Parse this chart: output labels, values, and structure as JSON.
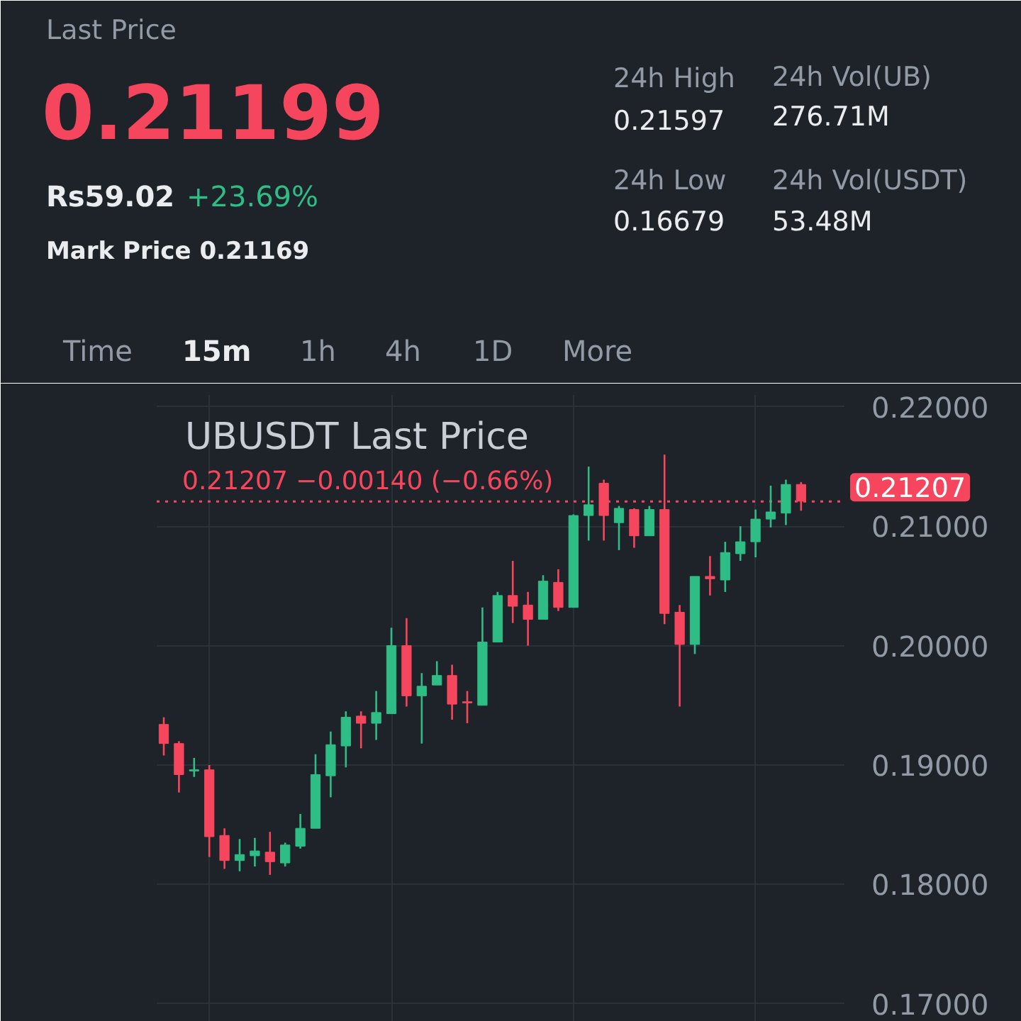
{
  "chart_data": {
    "type": "candlestick",
    "title": "UBUSDT Last Price",
    "annotations": [
      "Last Price",
      "0.21199",
      "Rs59.02",
      "+23.69%",
      "Mark Price 0.21169",
      "24h High",
      "0.21597",
      "24h Low",
      "0.16679",
      "24h Vol(UB)",
      "276.71M",
      "24h Vol(USDT)",
      "53.48M",
      "Time",
      "15m",
      "1h",
      "4h",
      "1D",
      "More",
      "0.21207 −0.00140 (−0.66%)"
    ],
    "categories": [
      null,
      null,
      null,
      null,
      null,
      null,
      null,
      null,
      null,
      null,
      null,
      null,
      null,
      null,
      null,
      null,
      null,
      null,
      null,
      null,
      null,
      null,
      null,
      null,
      null,
      null,
      null,
      null,
      null,
      null,
      null,
      null,
      null,
      null,
      null,
      null,
      null,
      null,
      null,
      null,
      null,
      null,
      null
    ],
    "ohlc": [
      [
        0.1934,
        0.194,
        0.1908,
        0.1918
      ],
      [
        0.1918,
        0.192,
        0.1877,
        0.1892
      ],
      [
        0.1895,
        0.1906,
        0.189,
        0.1896
      ],
      [
        0.1896,
        0.19,
        0.1823,
        0.184
      ],
      [
        0.1841,
        0.1847,
        0.1813,
        0.182
      ],
      [
        0.182,
        0.1838,
        0.1811,
        0.1825
      ],
      [
        0.1824,
        0.1839,
        0.1815,
        0.1828
      ],
      [
        0.1827,
        0.1844,
        0.1808,
        0.1819
      ],
      [
        0.1818,
        0.1835,
        0.1815,
        0.1833
      ],
      [
        0.1832,
        0.1859,
        0.183,
        0.1847
      ],
      [
        0.1847,
        0.1909,
        0.1847,
        0.1892
      ],
      [
        0.1891,
        0.1928,
        0.1873,
        0.1917
      ],
      [
        0.1916,
        0.1945,
        0.1898,
        0.194
      ],
      [
        0.1941,
        0.1945,
        0.1914,
        0.1935
      ],
      [
        0.1935,
        0.1962,
        0.1921,
        0.1944
      ],
      [
        0.1943,
        0.2015,
        0.1943,
        0.2
      ],
      [
        0.2,
        0.2023,
        0.1949,
        0.1958
      ],
      [
        0.1958,
        0.1977,
        0.1918,
        0.1966
      ],
      [
        0.1967,
        0.1987,
        0.1967,
        0.1975
      ],
      [
        0.1975,
        0.1984,
        0.1938,
        0.1951
      ],
      [
        0.1953,
        0.1962,
        0.1935,
        0.1952
      ],
      [
        0.195,
        0.2032,
        0.195,
        0.2003
      ],
      [
        0.2003,
        0.2045,
        0.2003,
        0.2042
      ],
      [
        0.2042,
        0.2071,
        0.2019,
        0.2033
      ],
      [
        0.2034,
        0.2045,
        0.2,
        0.2022
      ],
      [
        0.2022,
        0.2059,
        0.2022,
        0.2054
      ],
      [
        0.2053,
        0.2064,
        0.2029,
        0.2032
      ],
      [
        0.2032,
        0.211,
        0.2032,
        0.2109
      ],
      [
        0.2109,
        0.215,
        0.2088,
        0.2118
      ],
      [
        0.2136,
        0.2139,
        0.2088,
        0.2109
      ],
      [
        0.2103,
        0.2117,
        0.208,
        0.2115
      ],
      [
        0.2114,
        0.2115,
        0.2082,
        0.2092
      ],
      [
        0.2092,
        0.2117,
        0.2092,
        0.2114
      ],
      [
        0.2114,
        0.216,
        0.2018,
        0.2027
      ],
      [
        0.2028,
        0.2034,
        0.1949,
        0.2001
      ],
      [
        0.2001,
        0.2058,
        0.1993,
        0.2058
      ],
      [
        0.2058,
        0.2075,
        0.2042,
        0.2056
      ],
      [
        0.2055,
        0.2087,
        0.2045,
        0.2078
      ],
      [
        0.2077,
        0.21,
        0.2071,
        0.2087
      ],
      [
        0.2087,
        0.2114,
        0.2074,
        0.2106
      ],
      [
        0.2106,
        0.2134,
        0.2099,
        0.2112
      ],
      [
        0.2111,
        0.2139,
        0.2101,
        0.2135
      ],
      [
        0.2135,
        0.2137,
        0.2113,
        0.2121
      ]
    ],
    "colors": [
      "#f6465d",
      "#f6465d",
      "#2ebd85",
      "#f6465d",
      "#f6465d",
      "#2ebd85",
      "#2ebd85",
      "#f6465d",
      "#2ebd85",
      "#2ebd85",
      "#2ebd85",
      "#2ebd85",
      "#2ebd85",
      "#f6465d",
      "#2ebd85",
      "#2ebd85",
      "#f6465d",
      "#2ebd85",
      "#2ebd85",
      "#f6465d",
      "#f6465d",
      "#2ebd85",
      "#2ebd85",
      "#f6465d",
      "#f6465d",
      "#2ebd85",
      "#f6465d",
      "#2ebd85",
      "#2ebd85",
      "#f6465d",
      "#2ebd85",
      "#f6465d",
      "#2ebd85",
      "#f6465d",
      "#f6465d",
      "#2ebd85",
      "#f6465d",
      "#2ebd85",
      "#2ebd85",
      "#2ebd85",
      "#2ebd85",
      "#2ebd85",
      "#f6465d"
    ],
    "ylim": [
      0.1685,
      0.221
    ],
    "yticks": [
      {
        "value": 0.17,
        "label": "0.17000"
      },
      {
        "value": 0.18,
        "label": "0.18000"
      },
      {
        "value": 0.19,
        "label": "0.19000"
      },
      {
        "value": 0.2,
        "label": "0.20000"
      },
      {
        "value": 0.21,
        "label": "0.21000"
      },
      {
        "value": 0.22,
        "label": "0.22000"
      }
    ],
    "ref_lines": [
      {
        "axis": "y",
        "value": 0.21207,
        "label": "0.21207",
        "color": "#f6465d",
        "line_style": "dotted"
      }
    ],
    "grid": true,
    "tick_labels": "y"
  }
}
